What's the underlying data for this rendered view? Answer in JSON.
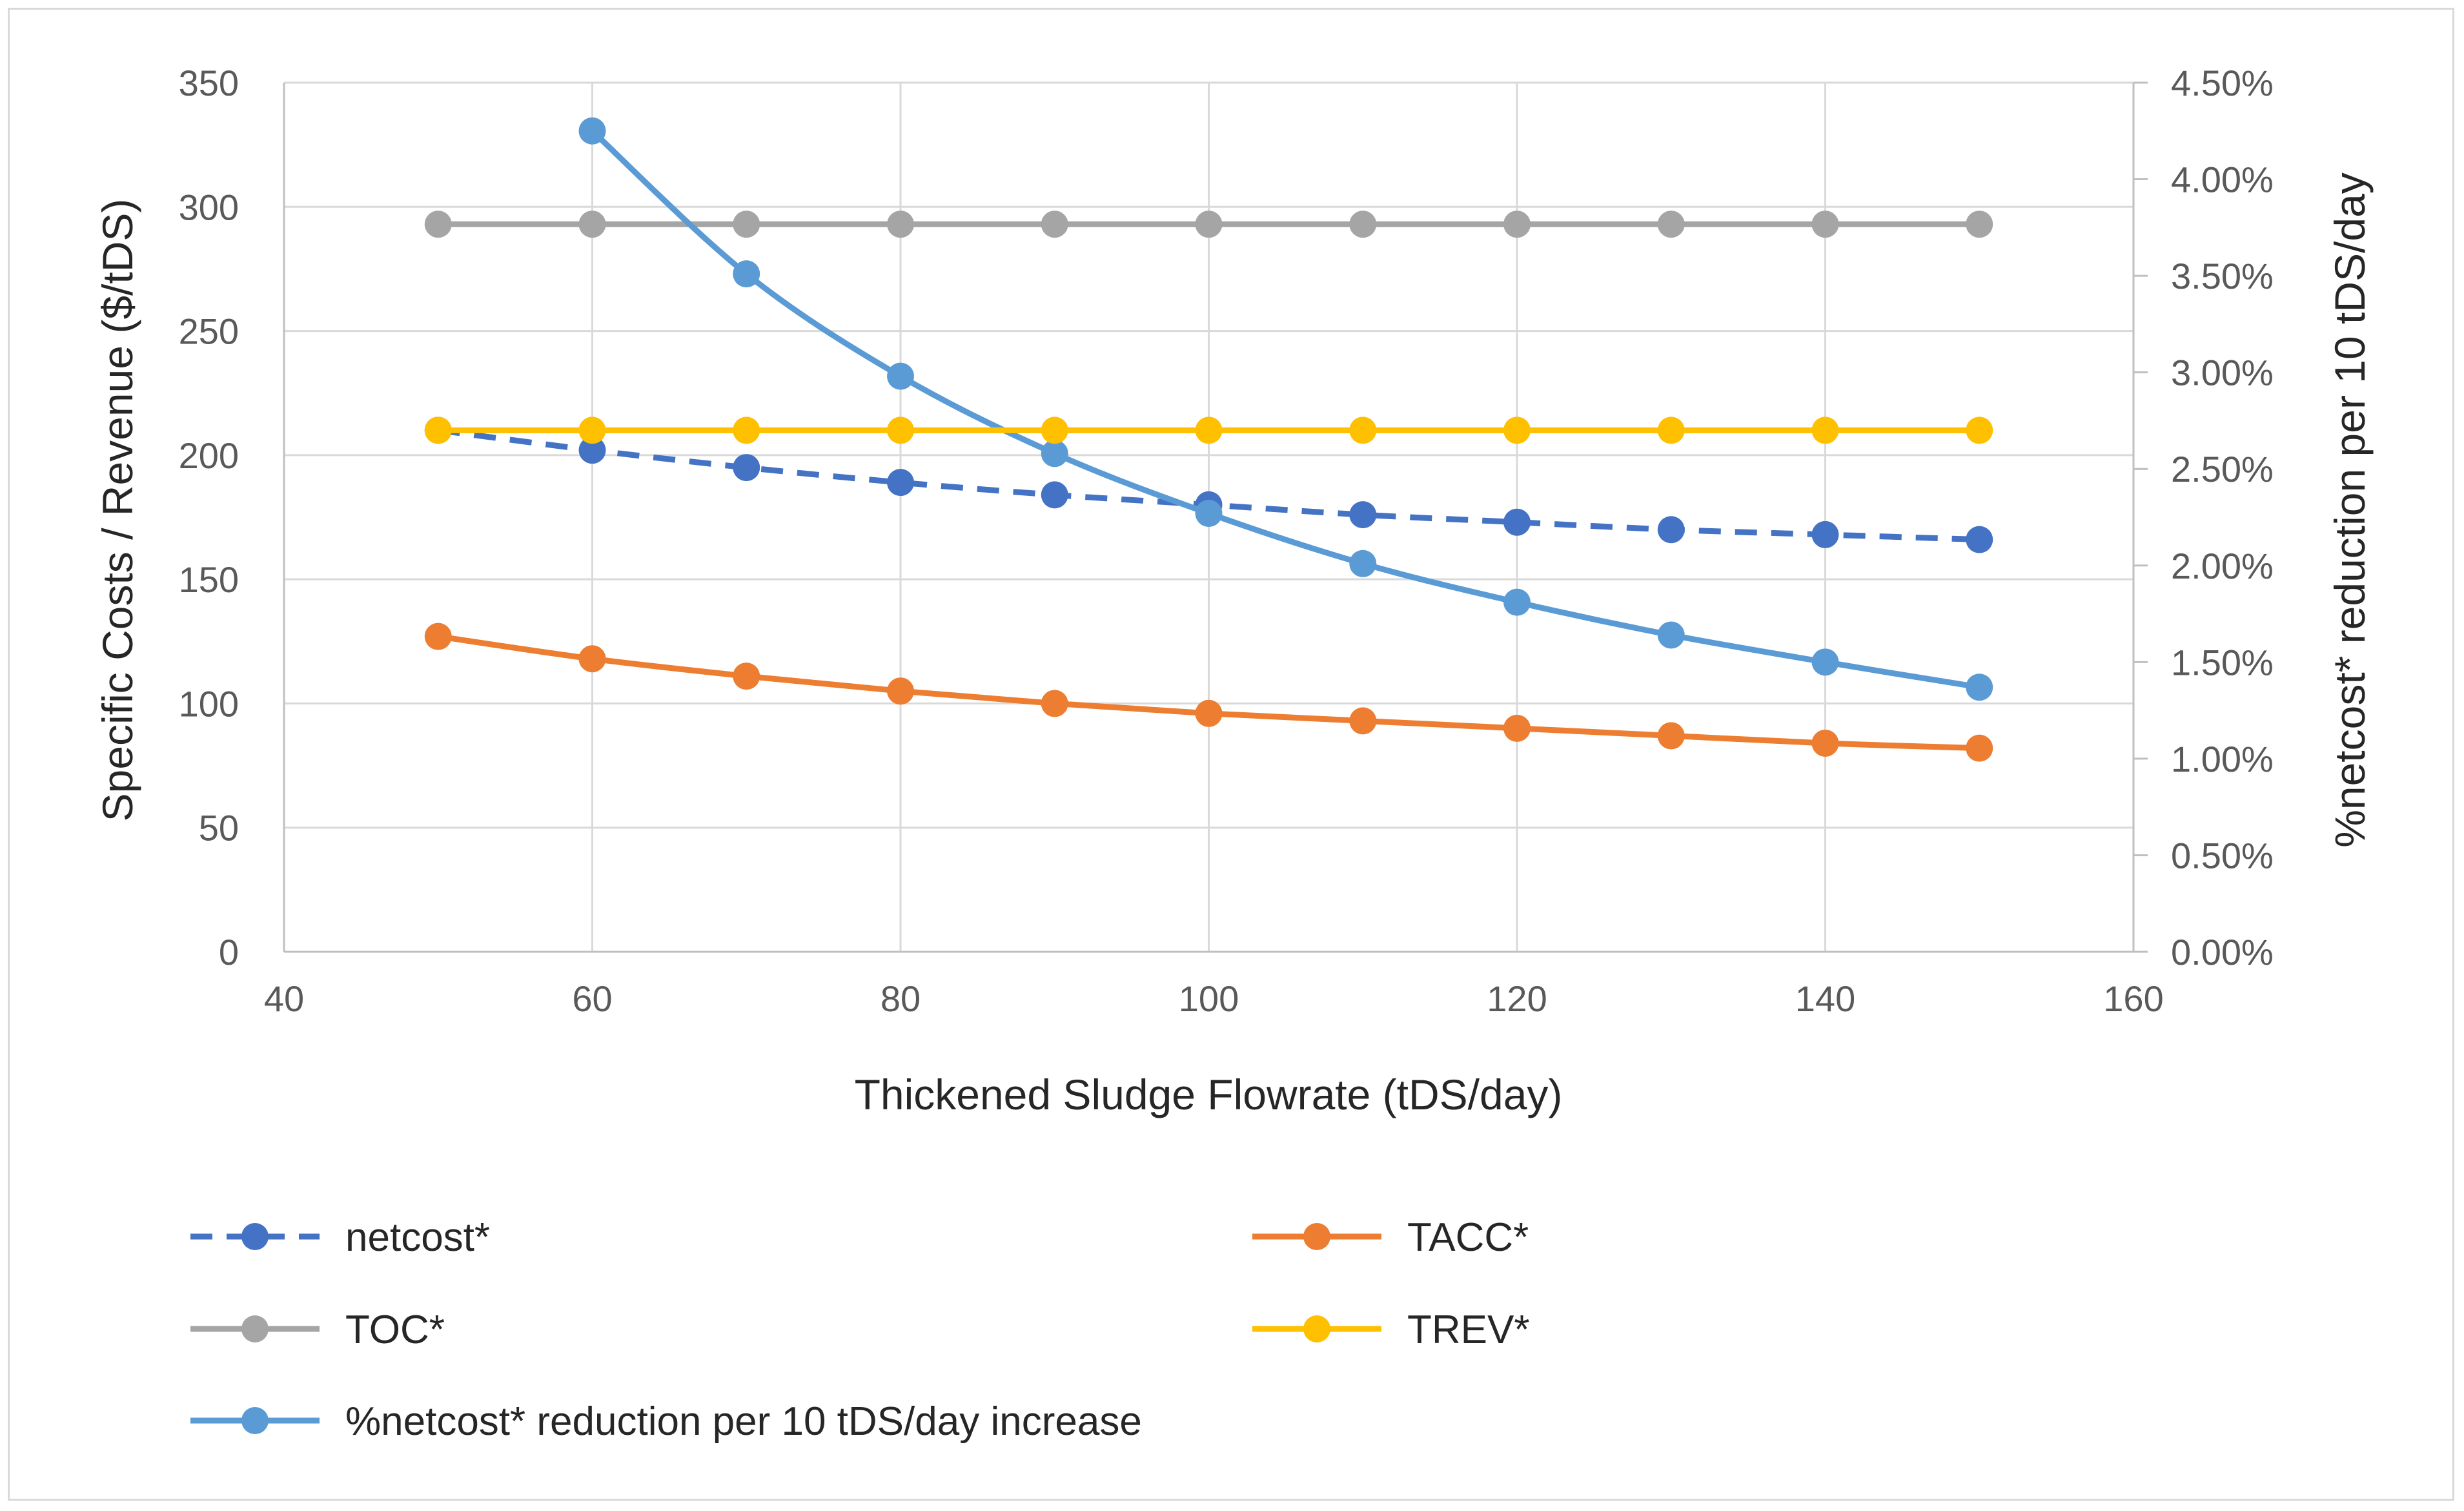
{
  "chart_data": {
    "type": "line",
    "title": "",
    "x": [
      50,
      60,
      70,
      80,
      90,
      100,
      110,
      120,
      130,
      140,
      150
    ],
    "xlabel": "Thickened Sludge Flowrate (tDS/day)",
    "xlim": [
      40,
      160
    ],
    "xticks": [
      "40",
      "60",
      "80",
      "100",
      "120",
      "140",
      "160"
    ],
    "ylabel": "Specific Costs / Revenue ($/tDS)",
    "ylim": [
      0,
      350
    ],
    "yticks": [
      "0",
      "50",
      "100",
      "150",
      "200",
      "250",
      "300",
      "350"
    ],
    "y2label": "%netcost* reduction per 10 tDS/day",
    "y2lim": [
      0,
      4.5
    ],
    "y2ticks": [
      "0.00%",
      "0.50%",
      "1.00%",
      "1.50%",
      "2.00%",
      "2.50%",
      "3.00%",
      "3.50%",
      "4.00%",
      "4.50%"
    ],
    "grid": true,
    "legend_position": "bottom",
    "series": [
      {
        "name": "netcost*",
        "axis": "left",
        "color": "#4472c4",
        "dashed": true,
        "x": [
          50,
          60,
          70,
          80,
          90,
          100,
          110,
          120,
          130,
          140,
          150
        ],
        "values": [
          210,
          202,
          195,
          189,
          184,
          180,
          176,
          173,
          170,
          168,
          166
        ]
      },
      {
        "name": "TACC*",
        "axis": "left",
        "color": "#ed7d31",
        "dashed": false,
        "x": [
          50,
          60,
          70,
          80,
          90,
          100,
          110,
          120,
          130,
          140,
          150
        ],
        "values": [
          127,
          118,
          111,
          105,
          100,
          96,
          93,
          90,
          87,
          84,
          82
        ]
      },
      {
        "name": "TOC*",
        "axis": "left",
        "color": "#a5a5a5",
        "dashed": false,
        "x": [
          50,
          60,
          70,
          80,
          90,
          100,
          110,
          120,
          130,
          140,
          150
        ],
        "values": [
          293,
          293,
          293,
          293,
          293,
          293,
          293,
          293,
          293,
          293,
          293
        ]
      },
      {
        "name": "TREV*",
        "axis": "left",
        "color": "#ffc000",
        "dashed": false,
        "x": [
          50,
          60,
          70,
          80,
          90,
          100,
          110,
          120,
          130,
          140,
          150
        ],
        "values": [
          210,
          210,
          210,
          210,
          210,
          210,
          210,
          210,
          210,
          210,
          210
        ]
      },
      {
        "name": "%netcost* reduction per 10 tDS/day increase",
        "axis": "right",
        "color": "#5b9bd5",
        "dashed": false,
        "x": [
          60,
          70,
          80,
          90,
          100,
          110,
          120,
          130,
          140,
          150
        ],
        "values": [
          4.25,
          3.51,
          2.98,
          2.58,
          2.27,
          2.01,
          1.81,
          1.64,
          1.5,
          1.37
        ]
      }
    ]
  }
}
